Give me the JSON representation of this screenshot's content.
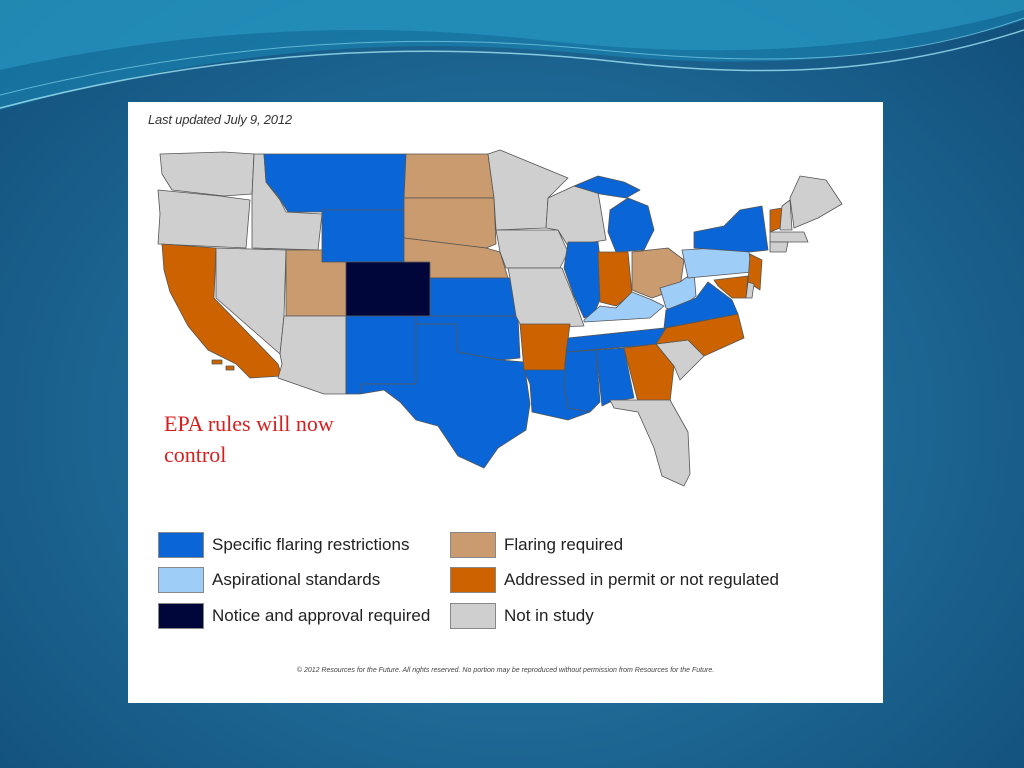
{
  "updated": "Last updated July 9, 2012",
  "annotation": "EPA rules will now control",
  "copyright": "© 2012 Resources for the Future. All rights reserved. No portion may be reproduced without permission from Resources for the Future.",
  "colors": {
    "specific": "#0a66d6",
    "aspirational": "#9ecdf7",
    "notice": "#00063a",
    "flaring": "#c99b6e",
    "permit": "#cc6300",
    "not_in_study": "#cfcfcf"
  },
  "legend": [
    {
      "label": "Specific flaring restrictions",
      "color": "#0a66d6"
    },
    {
      "label": "Aspirational standards",
      "color": "#9ecdf7"
    },
    {
      "label": "Notice and approval required",
      "color": "#00063a"
    },
    {
      "label": "Flaring required",
      "color": "#c99b6e"
    },
    {
      "label": "Addressed in permit or not regulated",
      "color": "#cc6300"
    },
    {
      "label": "Not in study",
      "color": "#cfcfcf"
    }
  ]
}
